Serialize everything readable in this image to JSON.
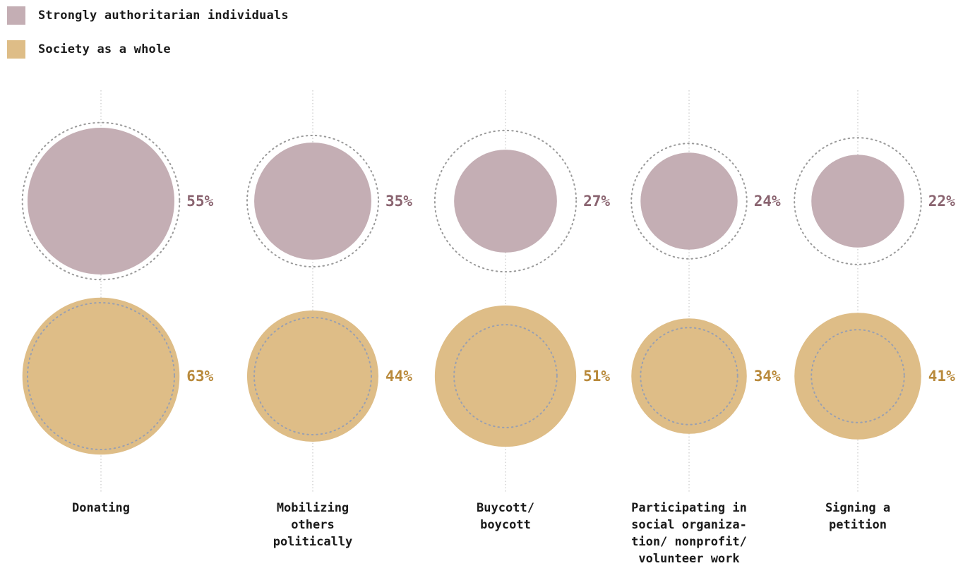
{
  "chart_data": {
    "type": "bubble",
    "title": "",
    "series": [
      {
        "name": "Strongly authoritarian individuals",
        "color": "#c4aeb4",
        "label_color": "#8a6470",
        "values": [
          55,
          35,
          27,
          24,
          22
        ]
      },
      {
        "name": "Society as a whole",
        "color": "#debd87",
        "label_color": "#b98a3c",
        "values": [
          63,
          44,
          51,
          34,
          41
        ]
      }
    ],
    "categories": [
      {
        "lines": [
          "Donating"
        ]
      },
      {
        "lines": [
          "Mobilizing",
          "others",
          "politically"
        ]
      },
      {
        "lines": [
          "Buycott/",
          "boycott"
        ]
      },
      {
        "lines": [
          "Participating in",
          "social organiza-",
          "tion/ nonprofit/",
          "volunteer work"
        ]
      },
      {
        "lines": [
          "Signing a",
          "petition"
        ]
      }
    ],
    "value_suffix": "%",
    "legend_position": "top-left",
    "guide": "dotted outline shows the other group's value"
  }
}
